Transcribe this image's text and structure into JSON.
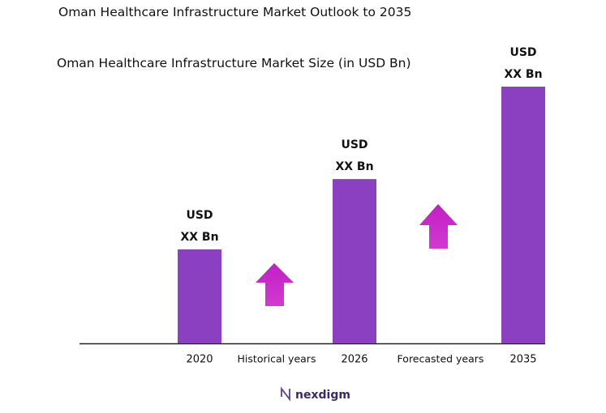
{
  "chart_data": {
    "type": "bar",
    "title": "Oman Healthcare Infrastructure Market Outlook to 2035",
    "subtitle": "Oman Healthcare Infrastructure Market Size (in USD Bn)",
    "categories": [
      "2020",
      "2026",
      "2035"
    ],
    "values": [
      36.6,
      64,
      100
    ],
    "value_labels": [
      "USD XX Bn",
      "USD XX Bn",
      "USD XX Bn"
    ],
    "color": "#8a40c1",
    "annotations": [
      "Historical years",
      "Forecasted years"
    ]
  },
  "logo": "nexdigm"
}
